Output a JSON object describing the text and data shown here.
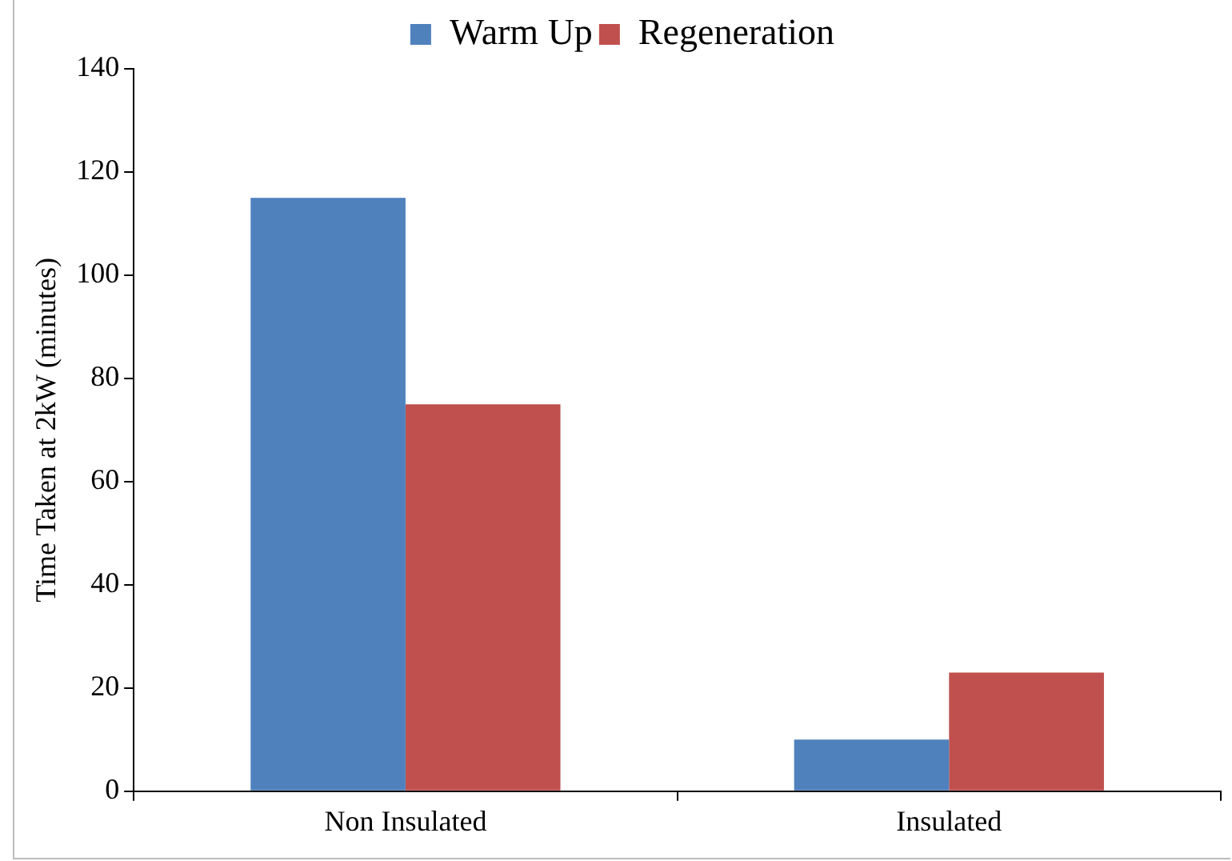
{
  "chart_data": {
    "type": "bar",
    "ylabel": "Time Taken at 2kW (minutes)",
    "categories": [
      "Non Insulated",
      "Insulated"
    ],
    "series": [
      {
        "name": "Warm Up",
        "color": "#4f81bd",
        "values": [
          115,
          10
        ]
      },
      {
        "name": "Regeneration",
        "color": "#c0504d",
        "values": [
          75,
          23
        ]
      }
    ],
    "ylim": [
      0,
      140
    ],
    "yticks": [
      0,
      20,
      40,
      60,
      80,
      100,
      120,
      140
    ],
    "grid": false,
    "legend": "top"
  }
}
